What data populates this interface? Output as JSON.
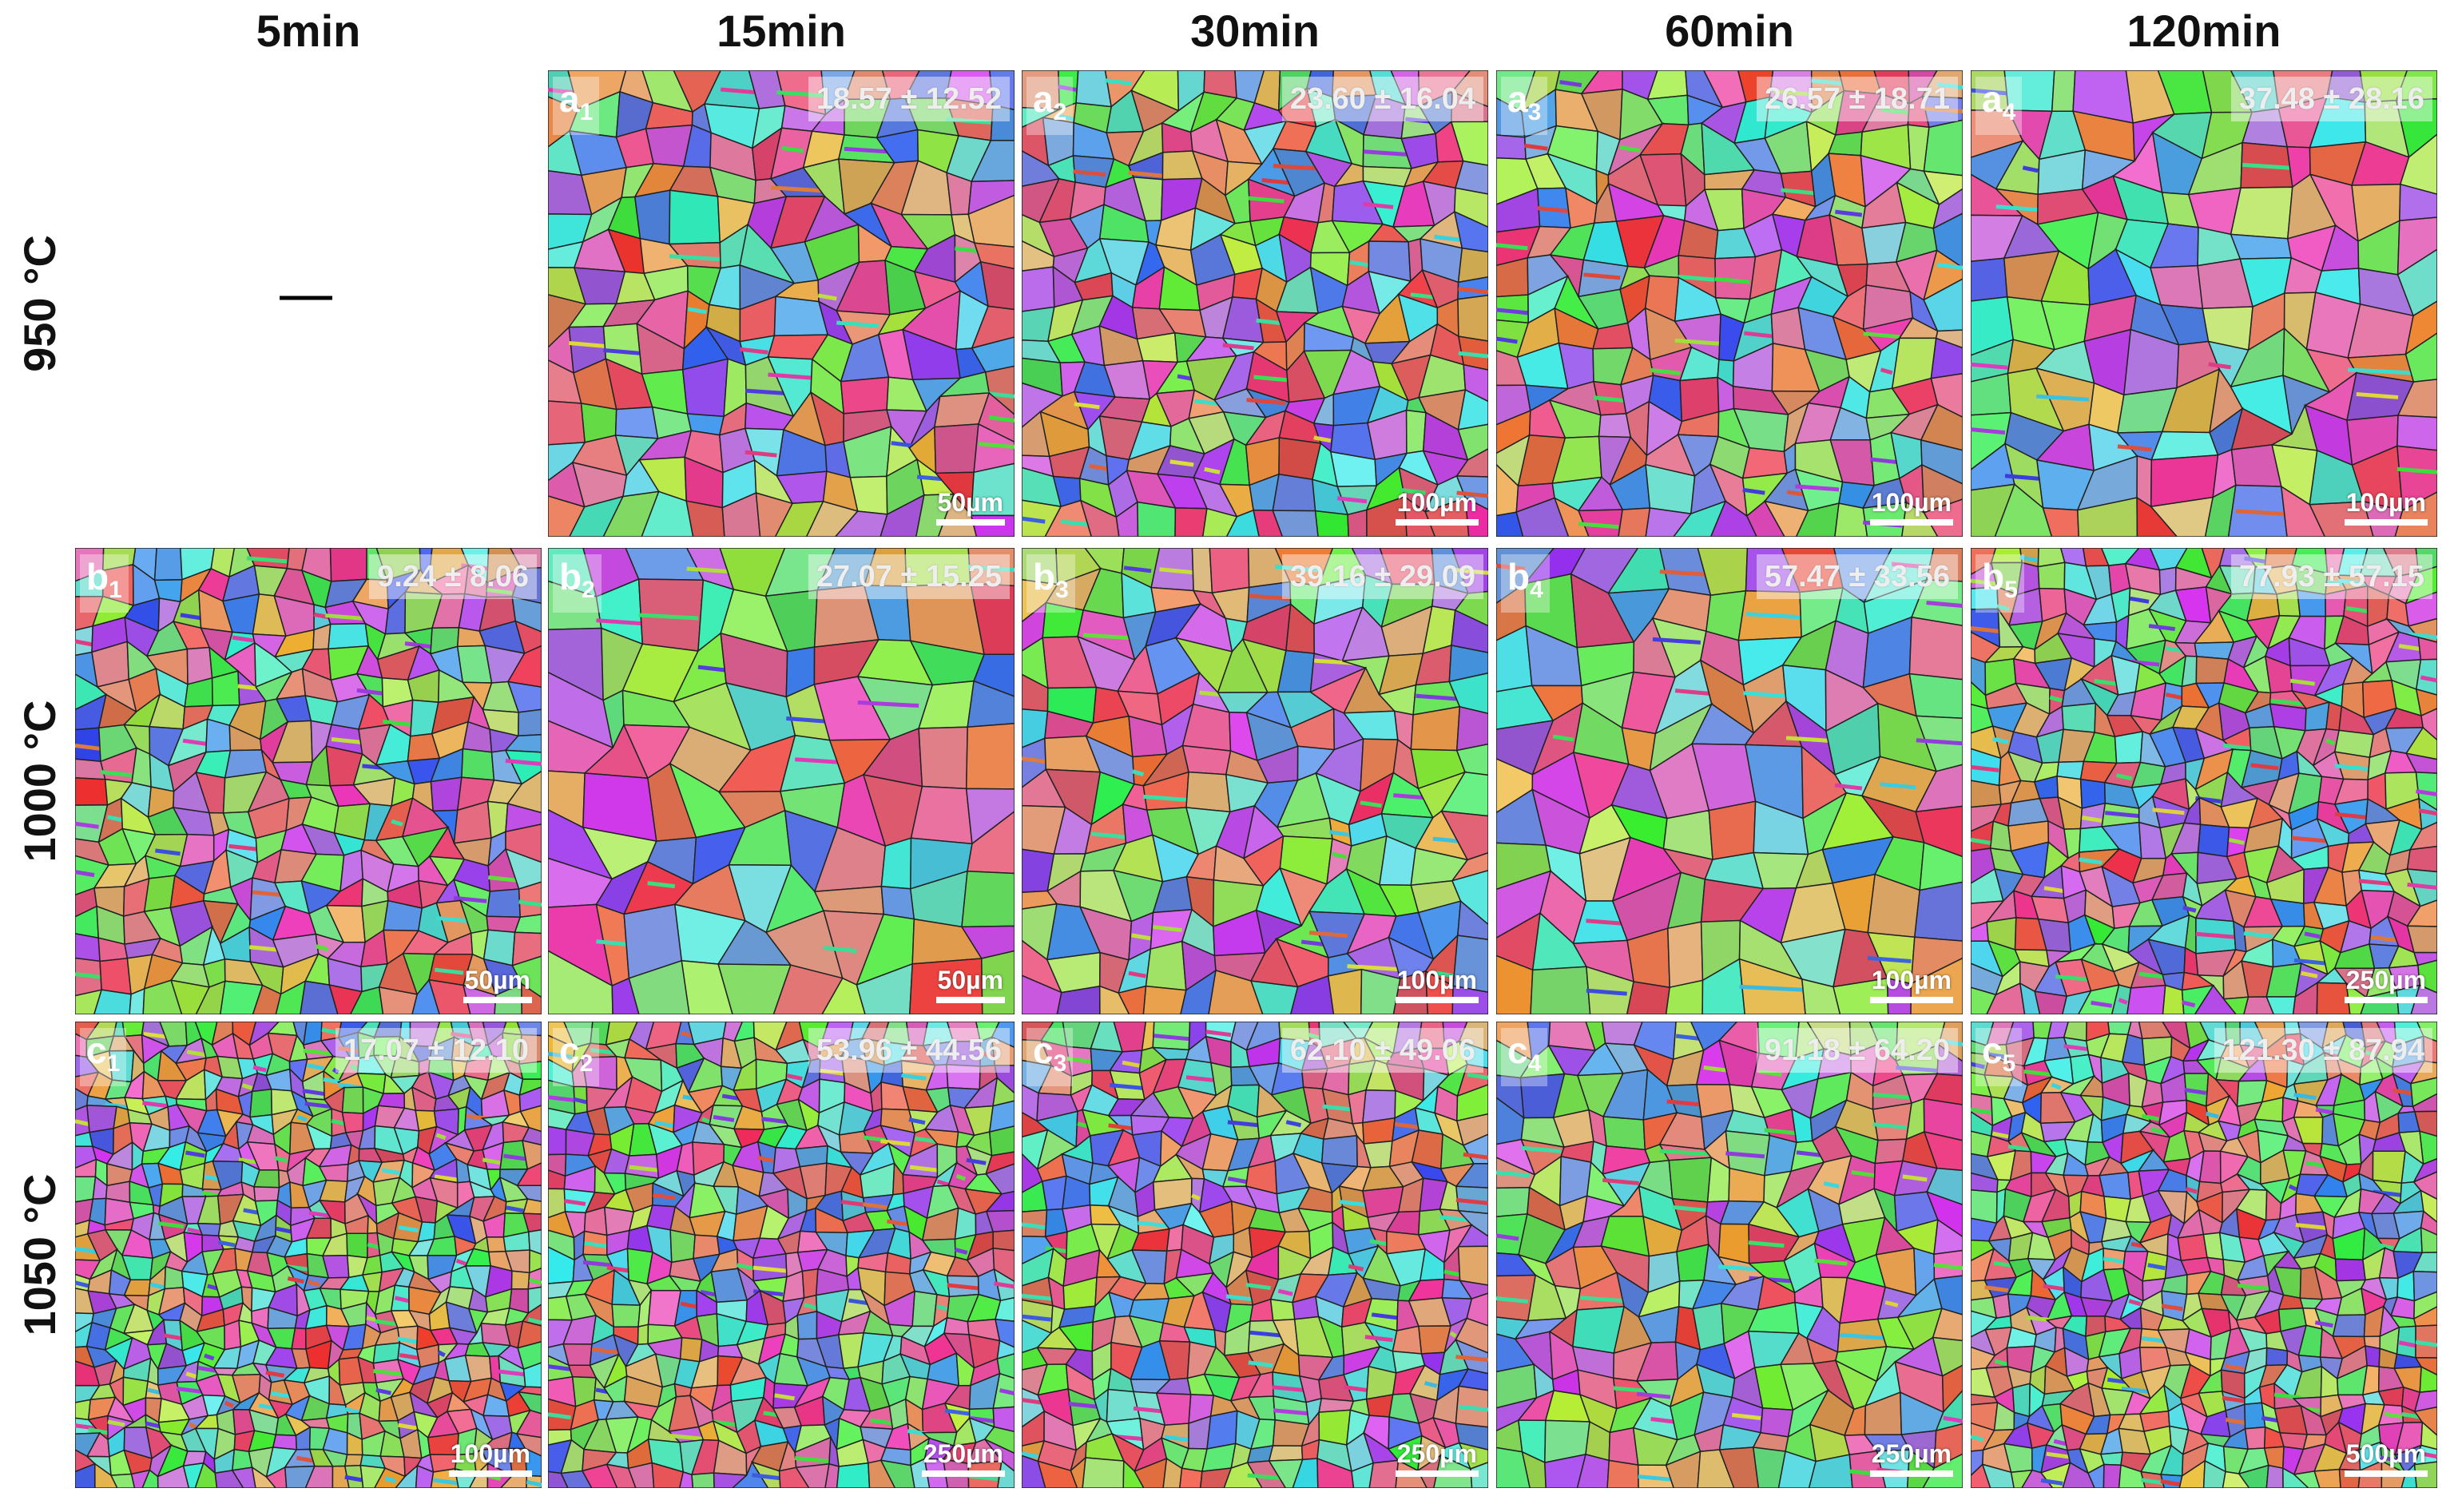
{
  "columns": [
    "5min",
    "15min",
    "30min",
    "60min",
    "120min"
  ],
  "rows": [
    {
      "label": "950 °C",
      "panels": [
        null,
        {
          "letter": "a",
          "sub": "1",
          "size": "18.57 ± 12.52",
          "scale": "50µm"
        },
        {
          "letter": "a",
          "sub": "2",
          "size": "23.60 ± 16.04",
          "scale": "100µm"
        },
        {
          "letter": "a",
          "sub": "3",
          "size": "26.57 ± 18.71",
          "scale": "100µm"
        },
        {
          "letter": "a",
          "sub": "4",
          "size": "37.48 ± 28.16",
          "scale": "100µm"
        }
      ]
    },
    {
      "label": "1000 °C",
      "panels": [
        {
          "letter": "b",
          "sub": "1",
          "size": "9.24 ± 8.06",
          "scale": "50µm"
        },
        {
          "letter": "b",
          "sub": "2",
          "size": "27.07 ± 15.25",
          "scale": "50µm"
        },
        {
          "letter": "b",
          "sub": "3",
          "size": "39.16 ± 29.09",
          "scale": "100µm"
        },
        {
          "letter": "b",
          "sub": "4",
          "size": "57.47 ± 33.56",
          "scale": "100µm"
        },
        {
          "letter": "b",
          "sub": "5",
          "size": "77.93 ± 57.15",
          "scale": "250µm"
        }
      ]
    },
    {
      "label": "1050 °C",
      "panels": [
        {
          "letter": "c",
          "sub": "1",
          "size": "17.07 ± 12.10",
          "scale": "100µm"
        },
        {
          "letter": "c",
          "sub": "2",
          "size": "53.96 ± 44.56",
          "scale": "250µm"
        },
        {
          "letter": "c",
          "sub": "3",
          "size": "62.10 ± 49.06",
          "scale": "250µm"
        },
        {
          "letter": "c",
          "sub": "4",
          "size": "91.18 ± 64.20",
          "scale": "250µm"
        },
        {
          "letter": "c",
          "sub": "5",
          "size": "121.30 ± 87.94",
          "scale": "500µm"
        }
      ]
    }
  ]
}
